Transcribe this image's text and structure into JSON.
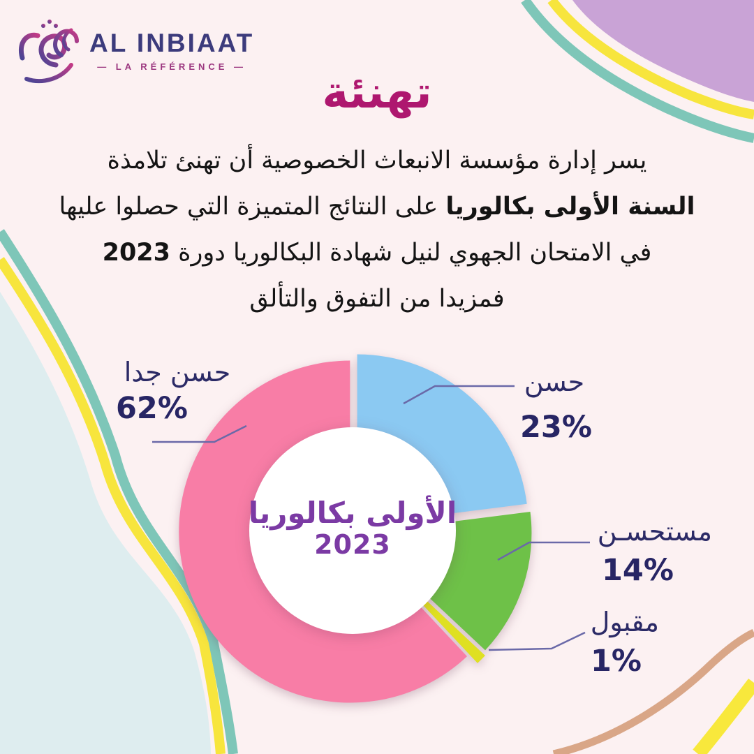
{
  "logo": {
    "name": "AL INBIAAT",
    "tagline": "— LA RÉFÉRENCE —",
    "mark_colors": {
      "from": "#4A4494",
      "to": "#C23A86"
    }
  },
  "title": "تهنئة",
  "message": {
    "line1": "يسر إدارة مؤسسة الانبعاث الخصوصية أن تهنئ تلامذة",
    "line2_bold": "السنة الأولى بكالوريا",
    "line2_rest": " على النتائج المتميزة التي حصلوا عليها",
    "line3_rest": "في الامتحان الجهوي لنيل شهادة البكالوريا دورة ",
    "line3_bold": "2023",
    "line4": "فمزيدا من التفوق والتألق"
  },
  "chart_data": {
    "type": "pie",
    "subtype": "donut",
    "center_label": {
      "line1": "الأولى بكالوريا",
      "line2": "2023"
    },
    "legend_position": "around-callouts",
    "segments": [
      {
        "id": "hasan",
        "label": "حسن",
        "value": 23,
        "pct_label": "23%",
        "color": "#8BC9F2",
        "explode": 10
      },
      {
        "id": "mustahsan",
        "label": "مستحسـن",
        "value": 14,
        "pct_label": "14%",
        "color": "#6EC148",
        "explode": 12
      },
      {
        "id": "maqbul",
        "label": "مقبول",
        "value": 1,
        "pct_label": "1%",
        "color": "#DFE022",
        "explode": 16
      },
      {
        "id": "hasan-jidan",
        "label": "حسن جدا",
        "value": 62,
        "pct_label": "62%",
        "color": "#F87DA6",
        "explode": 4
      }
    ]
  },
  "palette": {
    "background": "#FCF1F2",
    "title": "#AE176F",
    "label_navy": "#2B2A66",
    "center_purple": "#7B3AA4",
    "leader_line": "#6A69A8",
    "lilac_blob": "#C9A3D6",
    "teal_line": "#7EC6B8",
    "yellow_line": "#F7E53D",
    "pale_blue_blob": "#DEEDEF",
    "tan_line": "#D9A687"
  }
}
